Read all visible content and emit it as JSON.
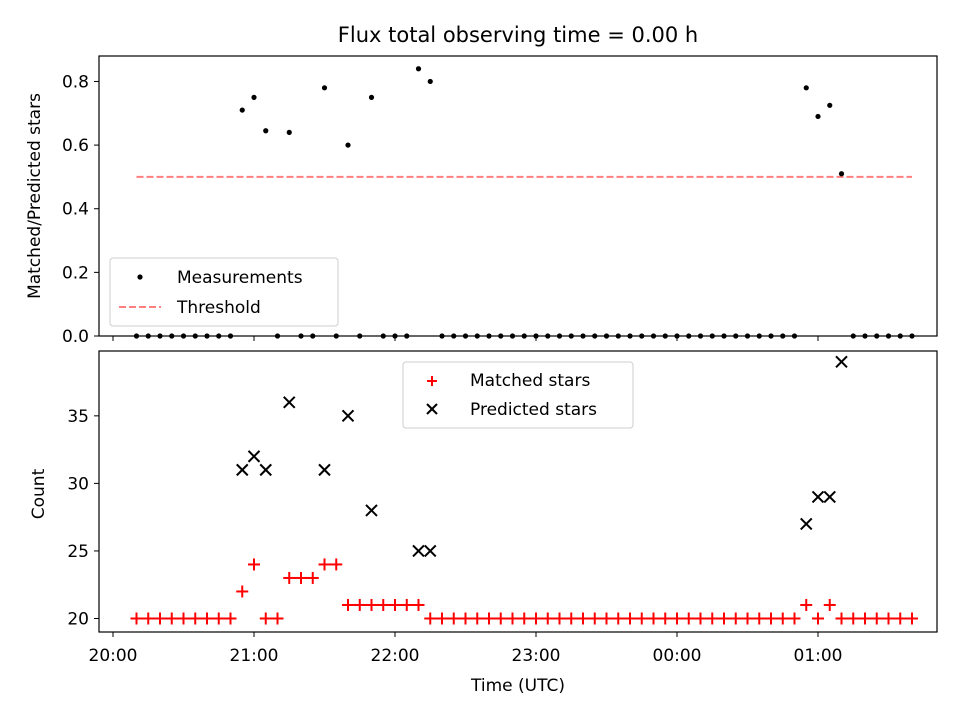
{
  "figure": {
    "title": "Flux total observing time = 0.00 h"
  },
  "chart_data": [
    {
      "type": "scatter",
      "ylabel": "Matched/Predicted stars",
      "ylim": [
        0,
        0.88
      ],
      "yticks": [
        "0.0",
        "0.2",
        "0.4",
        "0.6",
        "0.8"
      ],
      "legend_position": "lower-left",
      "series": [
        {
          "name": "Measurements",
          "marker": "dot",
          "color": "#000000",
          "points": [
            [
              "20:10",
              0
            ],
            [
              "20:15",
              0
            ],
            [
              "20:20",
              0
            ],
            [
              "20:25",
              0
            ],
            [
              "20:30",
              0
            ],
            [
              "20:35",
              0
            ],
            [
              "20:40",
              0
            ],
            [
              "20:45",
              0
            ],
            [
              "20:50",
              0
            ],
            [
              "20:55",
              0.71
            ],
            [
              "21:00",
              0.75
            ],
            [
              "21:05",
              0.645
            ],
            [
              "21:10",
              0
            ],
            [
              "21:15",
              0.64
            ],
            [
              "21:20",
              0
            ],
            [
              "21:25",
              0
            ],
            [
              "21:30",
              0.78
            ],
            [
              "21:35",
              0
            ],
            [
              "21:40",
              0.6
            ],
            [
              "21:45",
              0
            ],
            [
              "21:50",
              0.75
            ],
            [
              "21:55",
              0
            ],
            [
              "22:00",
              0
            ],
            [
              "22:05",
              0
            ],
            [
              "22:10",
              0.84
            ],
            [
              "22:15",
              0.8
            ],
            [
              "22:20",
              0
            ],
            [
              "22:25",
              0
            ],
            [
              "22:30",
              0
            ],
            [
              "22:35",
              0
            ],
            [
              "22:40",
              0
            ],
            [
              "22:45",
              0
            ],
            [
              "22:50",
              0
            ],
            [
              "22:55",
              0
            ],
            [
              "23:00",
              0
            ],
            [
              "23:05",
              0
            ],
            [
              "23:10",
              0
            ],
            [
              "23:15",
              0
            ],
            [
              "23:20",
              0
            ],
            [
              "23:25",
              0
            ],
            [
              "23:30",
              0
            ],
            [
              "23:35",
              0
            ],
            [
              "23:40",
              0
            ],
            [
              "23:45",
              0
            ],
            [
              "23:50",
              0
            ],
            [
              "23:55",
              0
            ],
            [
              "00:00",
              0
            ],
            [
              "00:05",
              0
            ],
            [
              "00:10",
              0
            ],
            [
              "00:15",
              0
            ],
            [
              "00:20",
              0
            ],
            [
              "00:25",
              0
            ],
            [
              "00:30",
              0
            ],
            [
              "00:35",
              0
            ],
            [
              "00:40",
              0
            ],
            [
              "00:45",
              0
            ],
            [
              "00:50",
              0
            ],
            [
              "00:55",
              0.78
            ],
            [
              "01:00",
              0.69
            ],
            [
              "01:05",
              0.725
            ],
            [
              "01:10",
              0.51
            ],
            [
              "01:15",
              0
            ],
            [
              "01:20",
              0
            ],
            [
              "01:25",
              0
            ],
            [
              "01:30",
              0
            ],
            [
              "01:35",
              0
            ],
            [
              "01:40",
              0
            ]
          ]
        },
        {
          "name": "Threshold",
          "style": "dashed-line",
          "color": "#ff7f7f",
          "points": [
            [
              "20:10",
              0.5
            ],
            [
              "01:40",
              0.5
            ]
          ]
        }
      ]
    },
    {
      "type": "scatter",
      "xlabel": "Time (UTC)",
      "ylabel": "Count",
      "ylim": [
        19,
        39.8
      ],
      "yticks": [
        "20",
        "25",
        "30",
        "35"
      ],
      "xticks": [
        "20:00",
        "21:00",
        "22:00",
        "23:00",
        "00:00",
        "01:00"
      ],
      "legend_position": "top-center",
      "series": [
        {
          "name": "Matched stars",
          "marker": "plus",
          "color": "#ff0000",
          "points": [
            [
              "20:10",
              20
            ],
            [
              "20:15",
              20
            ],
            [
              "20:20",
              20
            ],
            [
              "20:25",
              20
            ],
            [
              "20:30",
              20
            ],
            [
              "20:35",
              20
            ],
            [
              "20:40",
              20
            ],
            [
              "20:45",
              20
            ],
            [
              "20:50",
              20
            ],
            [
              "20:55",
              22
            ],
            [
              "21:00",
              24
            ],
            [
              "21:05",
              20
            ],
            [
              "21:10",
              20
            ],
            [
              "21:15",
              23
            ],
            [
              "21:20",
              23
            ],
            [
              "21:25",
              23
            ],
            [
              "21:30",
              24
            ],
            [
              "21:35",
              24
            ],
            [
              "21:40",
              21
            ],
            [
              "21:45",
              21
            ],
            [
              "21:50",
              21
            ],
            [
              "21:55",
              21
            ],
            [
              "22:00",
              21
            ],
            [
              "22:05",
              21
            ],
            [
              "22:10",
              21
            ],
            [
              "22:15",
              20
            ],
            [
              "22:20",
              20
            ],
            [
              "22:25",
              20
            ],
            [
              "22:30",
              20
            ],
            [
              "22:35",
              20
            ],
            [
              "22:40",
              20
            ],
            [
              "22:45",
              20
            ],
            [
              "22:50",
              20
            ],
            [
              "22:55",
              20
            ],
            [
              "23:00",
              20
            ],
            [
              "23:05",
              20
            ],
            [
              "23:10",
              20
            ],
            [
              "23:15",
              20
            ],
            [
              "23:20",
              20
            ],
            [
              "23:25",
              20
            ],
            [
              "23:30",
              20
            ],
            [
              "23:35",
              20
            ],
            [
              "23:40",
              20
            ],
            [
              "23:45",
              20
            ],
            [
              "23:50",
              20
            ],
            [
              "23:55",
              20
            ],
            [
              "00:00",
              20
            ],
            [
              "00:05",
              20
            ],
            [
              "00:10",
              20
            ],
            [
              "00:15",
              20
            ],
            [
              "00:20",
              20
            ],
            [
              "00:25",
              20
            ],
            [
              "00:30",
              20
            ],
            [
              "00:35",
              20
            ],
            [
              "00:40",
              20
            ],
            [
              "00:45",
              20
            ],
            [
              "00:50",
              20
            ],
            [
              "00:55",
              21
            ],
            [
              "01:00",
              20
            ],
            [
              "01:05",
              21
            ],
            [
              "01:10",
              20
            ],
            [
              "01:15",
              20
            ],
            [
              "01:20",
              20
            ],
            [
              "01:25",
              20
            ],
            [
              "01:30",
              20
            ],
            [
              "01:35",
              20
            ],
            [
              "01:40",
              20
            ]
          ]
        },
        {
          "name": "Predicted stars",
          "marker": "x",
          "color": "#000000",
          "points": [
            [
              "20:55",
              31
            ],
            [
              "21:00",
              32
            ],
            [
              "21:05",
              31
            ],
            [
              "21:15",
              36
            ],
            [
              "21:30",
              31
            ],
            [
              "21:40",
              35
            ],
            [
              "21:50",
              28
            ],
            [
              "22:10",
              25
            ],
            [
              "22:15",
              25
            ],
            [
              "00:55",
              27
            ],
            [
              "01:00",
              29
            ],
            [
              "01:05",
              29
            ],
            [
              "01:10",
              39
            ]
          ]
        }
      ]
    }
  ]
}
